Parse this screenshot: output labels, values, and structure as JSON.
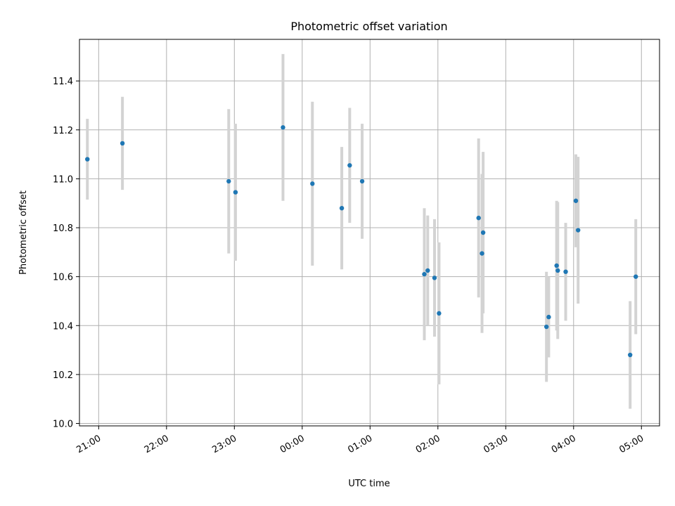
{
  "chart_data": {
    "type": "scatter",
    "title": "Photometric offset variation",
    "xlabel": "UTC time",
    "ylabel": "Photometric offset",
    "xlim": [
      "20:43",
      "05:16"
    ],
    "ylim": [
      9.99,
      11.57
    ],
    "xticks": [
      "21:00",
      "22:00",
      "23:00",
      "00:00",
      "01:00",
      "02:00",
      "03:00",
      "04:00",
      "05:00"
    ],
    "yticks": [
      10.0,
      10.2,
      10.4,
      10.6,
      10.8,
      11.0,
      11.2,
      11.4
    ],
    "grid": true,
    "colors": {
      "point": "#1f77b4",
      "errorbar": "#d3d3d3",
      "grid": "#b0b0b0"
    },
    "points": [
      {
        "x": "20:50",
        "y": 11.08,
        "yerr": 0.165
      },
      {
        "x": "21:21",
        "y": 11.145,
        "yerr": 0.19
      },
      {
        "x": "22:55",
        "y": 10.99,
        "yerr": 0.295
      },
      {
        "x": "23:01",
        "y": 10.945,
        "yerr": 0.28
      },
      {
        "x": "23:43",
        "y": 11.21,
        "yerr": 0.3
      },
      {
        "x": "00:09",
        "y": 10.98,
        "yerr": 0.335
      },
      {
        "x": "00:35",
        "y": 10.88,
        "yerr": 0.25
      },
      {
        "x": "00:42",
        "y": 11.055,
        "yerr": 0.235
      },
      {
        "x": "00:53",
        "y": 10.99,
        "yerr": 0.235
      },
      {
        "x": "01:48",
        "y": 10.61,
        "yerr": 0.27
      },
      {
        "x": "01:51",
        "y": 10.625,
        "yerr": 0.225
      },
      {
        "x": "01:57",
        "y": 10.595,
        "yerr": 0.24
      },
      {
        "x": "02:01",
        "y": 10.45,
        "yerr": 0.29
      },
      {
        "x": "02:36",
        "y": 10.84,
        "yerr": 0.325
      },
      {
        "x": "02:39",
        "y": 10.695,
        "yerr": 0.325
      },
      {
        "x": "02:40",
        "y": 10.78,
        "yerr": 0.33
      },
      {
        "x": "03:36",
        "y": 10.395,
        "yerr": 0.225
      },
      {
        "x": "03:38",
        "y": 10.435,
        "yerr": 0.165
      },
      {
        "x": "03:45",
        "y": 10.645,
        "yerr": 0.265
      },
      {
        "x": "03:46",
        "y": 10.625,
        "yerr": 0.28
      },
      {
        "x": "03:53",
        "y": 10.62,
        "yerr": 0.2
      },
      {
        "x": "04:02",
        "y": 10.91,
        "yerr": 0.19
      },
      {
        "x": "04:04",
        "y": 10.79,
        "yerr": 0.3
      },
      {
        "x": "04:50",
        "y": 10.28,
        "yerr": 0.22
      },
      {
        "x": "04:55",
        "y": 10.6,
        "yerr": 0.235
      }
    ]
  }
}
